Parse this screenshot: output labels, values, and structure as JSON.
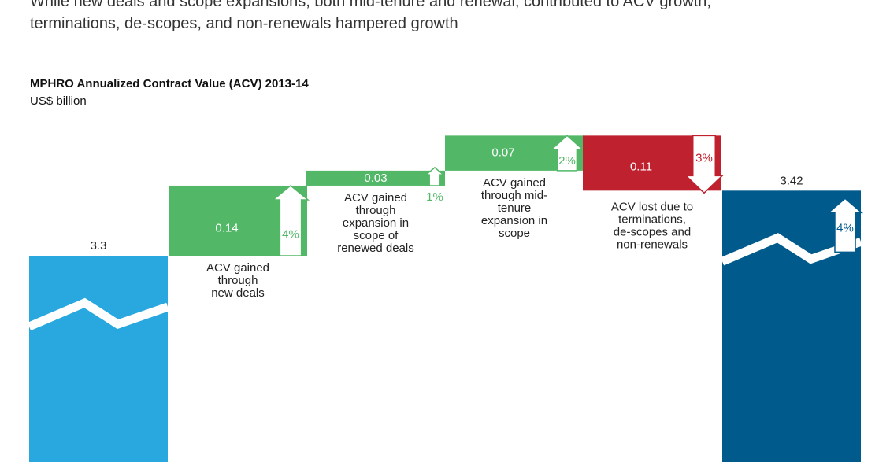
{
  "headline": [
    "While new deals and scope expansions, both mid-tenure and renewal, contributed to ACV growth,",
    "terminations, de-scopes, and non-renewals hampered growth"
  ],
  "chart_data": {
    "type": "waterfall",
    "title": "MPHRO Annualized Contract Value (ACV) 2013-14",
    "unit": "US$ billion",
    "steps": [
      {
        "kind": "total",
        "value": 3.3,
        "label": "3.3",
        "desc": [],
        "pct": "",
        "color": "#29a8e0"
      },
      {
        "kind": "increase",
        "value": 0.14,
        "label": "0.14",
        "desc": [
          "ACV gained",
          "through",
          "new deals"
        ],
        "pct": "4%",
        "color": "#52b867"
      },
      {
        "kind": "increase",
        "value": 0.03,
        "label": "0.03",
        "desc": [
          "ACV gained",
          "through",
          "expansion in",
          "scope of",
          "renewed deals"
        ],
        "pct": "1%",
        "color": "#52b867"
      },
      {
        "kind": "increase",
        "value": 0.07,
        "label": "0.07",
        "desc": [
          "ACV gained",
          "through mid-",
          "tenure",
          "expansion in",
          "scope"
        ],
        "pct": "2%",
        "color": "#52b867"
      },
      {
        "kind": "decrease",
        "value": 0.11,
        "label": "0.11",
        "desc": [
          "ACV lost due to",
          "terminations,",
          "de-scopes and",
          "non-renewals"
        ],
        "pct": "3%",
        "color": "#c0212f"
      },
      {
        "kind": "total",
        "value": 3.42,
        "label": "3.42",
        "desc": [],
        "pct": "4%",
        "color": "#015a8c"
      }
    ]
  }
}
